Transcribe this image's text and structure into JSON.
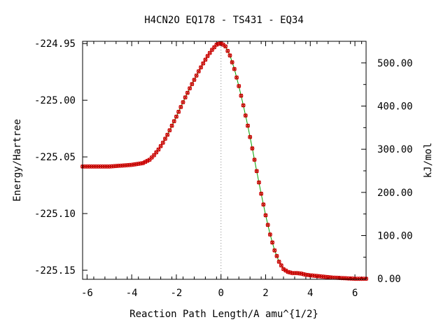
{
  "chart_data": {
    "type": "line",
    "title": "H4CN2O   EQ178 - TS431 - EQ34",
    "xlabel": "Reaction Path Length/A amu^{1/2}",
    "ylabel": "Energy/Hartree",
    "y2label": "kJ/mol",
    "xlim": [
      -6.2,
      6.5
    ],
    "ylim": [
      -225.158,
      -224.948
    ],
    "y2_zero_energy": -225.1575,
    "kj_per_hartree": 2625.5,
    "x_ticks": [
      -6,
      -4,
      -2,
      0,
      2,
      4,
      6
    ],
    "x_tick_labels": [
      "-6",
      "-4",
      "-2",
      "0",
      "2",
      "4",
      "6"
    ],
    "y_ticks": [
      -224.95,
      -225.0,
      -225.05,
      -225.1,
      -225.15
    ],
    "y_tick_labels": [
      "-224.95",
      "-225.00",
      "-225.05",
      "-225.10",
      "-225.15"
    ],
    "y2_ticks": [
      0,
      100,
      200,
      300,
      400,
      500
    ],
    "y2_tick_labels": [
      "0.00",
      "100.00",
      "200.00",
      "300.00",
      "400.00",
      "500.00"
    ],
    "grid": false,
    "legend": "none",
    "series": [
      {
        "line_color": "#00a000",
        "marker_color": "#cc0000",
        "x": [
          -6.2,
          -5.0,
          -4.0,
          -3.5,
          -3.2,
          -3.0,
          -2.8,
          -2.6,
          -2.4,
          -2.2,
          -2.0,
          -1.8,
          -1.6,
          -1.4,
          -1.2,
          -1.0,
          -0.8,
          -0.6,
          -0.4,
          -0.2,
          0.0,
          0.2,
          0.4,
          0.6,
          0.8,
          1.0,
          1.2,
          1.4,
          1.6,
          1.8,
          2.0,
          2.2,
          2.4,
          2.6,
          2.8,
          3.0,
          3.2,
          3.4,
          3.6,
          3.8,
          4.0,
          4.5,
          5.0,
          5.5,
          6.0,
          6.5
        ],
        "y": [
          -225.0585,
          -225.0585,
          -225.057,
          -225.0555,
          -225.0525,
          -225.0485,
          -225.0435,
          -225.0375,
          -225.0305,
          -225.0225,
          -225.0145,
          -225.006,
          -224.9975,
          -224.9895,
          -224.982,
          -224.9745,
          -224.9675,
          -224.961,
          -224.9555,
          -224.951,
          -224.9495,
          -224.9525,
          -224.9605,
          -224.9725,
          -224.9875,
          -225.0045,
          -225.0225,
          -225.0425,
          -225.0625,
          -225.0825,
          -225.1015,
          -225.1185,
          -225.1325,
          -225.1425,
          -225.149,
          -225.1515,
          -225.1525,
          -225.1525,
          -225.153,
          -225.154,
          -225.1545,
          -225.1555,
          -225.1565,
          -225.157,
          -225.1575,
          -225.1575
        ]
      }
    ]
  }
}
